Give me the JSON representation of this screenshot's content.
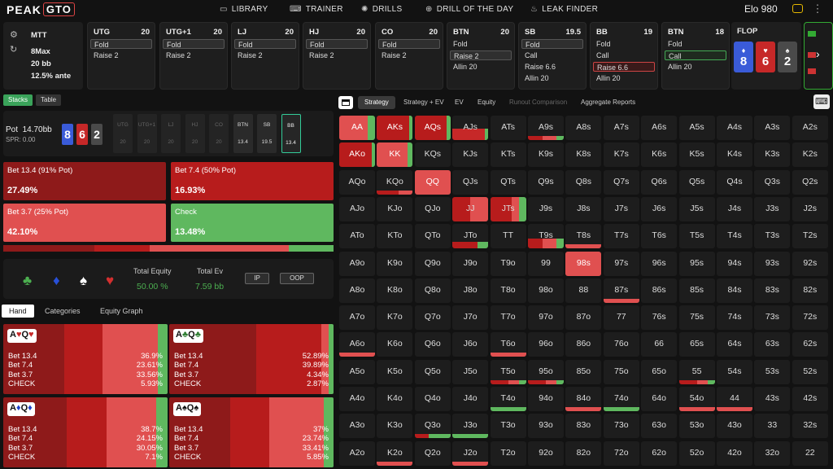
{
  "nav": {
    "logo_a": "PEAK",
    "logo_b": "GTO",
    "items": [
      "LIBRARY",
      "TRAINER",
      "DRILLS",
      "DRILL OF THE DAY",
      "LEAK FINDER"
    ],
    "elo": "Elo 980"
  },
  "info": {
    "format": "MTT",
    "players": "8Max",
    "stack": "20 bb",
    "ante": "12.5% ante"
  },
  "positions": [
    {
      "pos": "UTG",
      "stack": "20",
      "options": [
        "Fold",
        "Raise 2"
      ]
    },
    {
      "pos": "UTG+1",
      "stack": "20",
      "options": [
        "Fold",
        "Raise 2"
      ]
    },
    {
      "pos": "LJ",
      "stack": "20",
      "options": [
        "Fold",
        "Raise 2"
      ]
    },
    {
      "pos": "HJ",
      "stack": "20",
      "options": [
        "Fold",
        "Raise 2"
      ]
    },
    {
      "pos": "CO",
      "stack": "20",
      "options": [
        "Fold",
        "Raise 2"
      ]
    },
    {
      "pos": "BTN",
      "stack": "20",
      "options": [
        "Fold",
        "Raise 2",
        "Allin 20"
      ]
    },
    {
      "pos": "SB",
      "stack": "19.5",
      "options": [
        "Fold",
        "Call",
        "Raise 6.6",
        "Allin 20"
      ]
    },
    {
      "pos": "BB",
      "stack": "19",
      "options": [
        "Fold",
        "Call",
        "Raise 6.6",
        "Allin 20"
      ]
    },
    {
      "pos": "BTN",
      "stack": "18",
      "options": [
        "Fold",
        "Call",
        "Allin 20"
      ]
    }
  ],
  "flop": {
    "label": "FLOP",
    "cards": [
      {
        "rank": "8",
        "suit": "♦",
        "color": "#3a5bd8"
      },
      {
        "rank": "6",
        "suit": "♥",
        "color": "#c62828"
      },
      {
        "rank": "2",
        "suit": "♠",
        "color": "#4a4a4a"
      }
    ]
  },
  "tabs_small": [
    "Stacks",
    "Table"
  ],
  "pot": {
    "label": "Pot",
    "value": "14.70bb",
    "spr": "SPR: 0.00"
  },
  "seats": [
    {
      "n": "UTG",
      "v": "20"
    },
    {
      "n": "UTG+1",
      "v": "20"
    },
    {
      "n": "LJ",
      "v": "20"
    },
    {
      "n": "HJ",
      "v": "20"
    },
    {
      "n": "CO",
      "v": "20"
    },
    {
      "n": "BTN",
      "v": "13.4"
    },
    {
      "n": "SB",
      "v": "19.5"
    },
    {
      "n": "BB",
      "v": "13.4"
    }
  ],
  "actions": [
    {
      "label": "Bet 13.4 (91% Pot)",
      "pct": "27.49%",
      "color": "#8e1a1a"
    },
    {
      "label": "Bet 7.4 (50% Pot)",
      "pct": "16.93%",
      "color": "#b71c1c"
    },
    {
      "label": "Bet 3.7 (25% Pot)",
      "pct": "42.10%",
      "color": "#e05050"
    },
    {
      "label": "Check",
      "pct": "13.48%",
      "color": "#5fb85f"
    }
  ],
  "freq": [
    27.49,
    16.93,
    42.1,
    13.48
  ],
  "equity": {
    "total_equity_label": "Total Equity",
    "total_equity": "50.00 %",
    "total_ev_label": "Total Ev",
    "total_ev": "7.59 bb",
    "ip": "IP",
    "oop": "OOP"
  },
  "hand_tabs": [
    "Hand",
    "Categories",
    "Equity Graph"
  ],
  "hands": [
    {
      "r1": "A",
      "s1": "♥",
      "r2": "Q",
      "s2": "♥",
      "sc": "#c62828",
      "rows": [
        [
          "Bet 13.4",
          "36.9%"
        ],
        [
          "Bet 7.4",
          "23.61%"
        ],
        [
          "Bet 3.7",
          "33.56%"
        ],
        [
          "CHECK",
          "5.93%"
        ]
      ],
      "f": [
        36.9,
        23.61,
        33.56,
        5.93
      ]
    },
    {
      "r1": "A",
      "s1": "♣",
      "r2": "Q",
      "s2": "♣",
      "sc": "#2e7d32",
      "rows": [
        [
          "Bet 13.4",
          "52.89%"
        ],
        [
          "Bet 7.4",
          "39.89%"
        ],
        [
          "Bet 3.7",
          "4.34%"
        ],
        [
          "CHECK",
          "2.87%"
        ]
      ],
      "f": [
        52.89,
        39.89,
        4.34,
        2.87
      ]
    },
    {
      "r1": "A",
      "s1": "♦",
      "r2": "Q",
      "s2": "♦",
      "sc": "#1e40c8",
      "rows": [
        [
          "Bet 13.4",
          "38.7%"
        ],
        [
          "Bet 7.4",
          "24.15%"
        ],
        [
          "Bet 3.7",
          "30.05%"
        ],
        [
          "CHECK",
          "7.1%"
        ]
      ],
      "f": [
        38.7,
        24.15,
        30.05,
        7.1
      ]
    },
    {
      "r1": "A",
      "s1": "♠",
      "r2": "Q",
      "s2": "♠",
      "sc": "#111111",
      "rows": [
        [
          "Bet 13.4",
          "37%"
        ],
        [
          "Bet 7.4",
          "23.74%"
        ],
        [
          "Bet 3.7",
          "33.41%"
        ],
        [
          "CHECK",
          "5.85%"
        ]
      ],
      "f": [
        37,
        23.74,
        33.41,
        5.85
      ]
    }
  ],
  "right_tabs": [
    "Strategy",
    "Strategy + EV",
    "EV",
    "Equity",
    "Runout Comparison",
    "Aggregate Reports"
  ],
  "colors": {
    "bet_big": "#8e1a1a",
    "bet_mid": "#b71c1c",
    "bet_small": "#e05050",
    "check": "#5fb85f"
  }
}
